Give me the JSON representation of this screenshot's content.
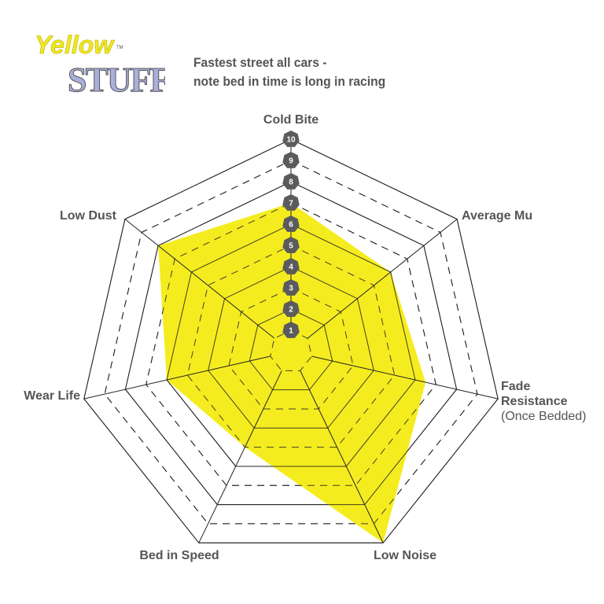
{
  "logo": {
    "line1": "Yellow",
    "line2": "STUFF",
    "tm": "TM"
  },
  "title": {
    "line1": "Fastest street all cars -",
    "line2": "note bed in time is long in racing"
  },
  "chart_data": {
    "type": "radar",
    "title": "Fastest street all cars - note bed in time is long in racing",
    "axes": [
      {
        "label": "Cold Bite",
        "sub": ""
      },
      {
        "label": "Average Mu",
        "sub": ""
      },
      {
        "label": "Fade Resistance",
        "sub": "(Once Bedded)"
      },
      {
        "label": "Low Noise",
        "sub": ""
      },
      {
        "label": "Bed in Speed",
        "sub": ""
      },
      {
        "label": "Wear Life",
        "sub": ""
      },
      {
        "label": "Low Dust",
        "sub": ""
      }
    ],
    "values": [
      7,
      6,
      6.5,
      10,
      5,
      6,
      8
    ],
    "range": [
      0,
      10
    ],
    "ticks": [
      1,
      2,
      3,
      4,
      5,
      6,
      7,
      8,
      9,
      10
    ],
    "fill_color": "#f5ec1f",
    "badge_color": "#5b5b5d",
    "grid": "solid at even levels, dashed at odd levels"
  }
}
